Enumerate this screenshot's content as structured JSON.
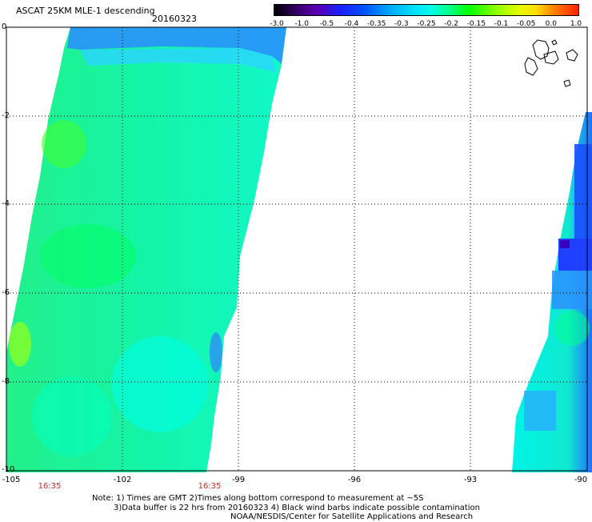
{
  "title": "ASCAT 25KM MLE-1 descending",
  "date": "20160323",
  "colorbar": {
    "labels": [
      "-3.0",
      "-1.0",
      "-0.5",
      "-0.4",
      "-0.35",
      "-0.3",
      "-0.25",
      "-0.2",
      "-0.15",
      "-0.1",
      "-0.05",
      "0.0",
      "1.0"
    ]
  },
  "axes": {
    "y_labels": [
      "0",
      "-2",
      "-4",
      "-6",
      "-8",
      "-10"
    ],
    "x_labels": [
      "-105",
      "-102",
      "-99",
      "-96",
      "-93",
      "-90"
    ],
    "time_labels": [
      "16:35",
      "16:35"
    ]
  },
  "notes": [
    "Note: 1) Times are GMT 2)Times along bottom correspond to measurement at ~5S",
    "3)Data buffer is 22 hrs from 20160323 4) Black wind barbs indicate possible contamination",
    "NOAA/NESDIS/Center for Satellite Applications and Research"
  ],
  "colors": {
    "swath_base": "#00ffe0",
    "swath_green": "#00ff80",
    "swath_blue": "#1a60ff",
    "time_label": "#c0281c"
  }
}
